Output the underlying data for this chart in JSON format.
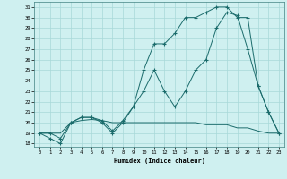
{
  "xlabel": "Humidex (Indice chaleur)",
  "xlim": [
    -0.5,
    23.5
  ],
  "ylim": [
    17.7,
    31.5
  ],
  "yticks": [
    18,
    19,
    20,
    21,
    22,
    23,
    24,
    25,
    26,
    27,
    28,
    29,
    30,
    31
  ],
  "xticks": [
    0,
    1,
    2,
    3,
    4,
    5,
    6,
    7,
    8,
    9,
    10,
    11,
    12,
    13,
    14,
    15,
    16,
    17,
    18,
    19,
    20,
    21,
    22,
    23
  ],
  "bg_color": "#cff0f0",
  "grid_color": "#a8d8d8",
  "line_color": "#1a6b6b",
  "line1_x": [
    0,
    1,
    2,
    3,
    4,
    5,
    6,
    7,
    8,
    9,
    10,
    11,
    12,
    13,
    14,
    15,
    16,
    17,
    18,
    19,
    20,
    21,
    22,
    23
  ],
  "line1_y": [
    19,
    18.5,
    18,
    20,
    20.5,
    20.5,
    20,
    19,
    20,
    21.5,
    25,
    27.5,
    27.5,
    28.5,
    30,
    30,
    30.5,
    31,
    31,
    30,
    30,
    23.5,
    21,
    19
  ],
  "line2_x": [
    0,
    1,
    2,
    3,
    4,
    5,
    6,
    7,
    8,
    9,
    10,
    11,
    12,
    13,
    14,
    15,
    16,
    17,
    18,
    19,
    20,
    21,
    22,
    23
  ],
  "line2_y": [
    19,
    19,
    18.5,
    20,
    20.5,
    20.5,
    20.2,
    19.2,
    20.2,
    21.5,
    23,
    25,
    23,
    21.5,
    23,
    25,
    26,
    29,
    30.5,
    30.2,
    27,
    23.5,
    21,
    19
  ],
  "line3_x": [
    0,
    1,
    2,
    3,
    4,
    5,
    6,
    7,
    8,
    9,
    10,
    11,
    12,
    13,
    14,
    15,
    16,
    17,
    18,
    19,
    20,
    21,
    22,
    23
  ],
  "line3_y": [
    19,
    19,
    19,
    20,
    20.2,
    20.3,
    20.2,
    20,
    20,
    20,
    20,
    20,
    20,
    20,
    20,
    20,
    19.8,
    19.8,
    19.8,
    19.5,
    19.5,
    19.2,
    19,
    19
  ]
}
